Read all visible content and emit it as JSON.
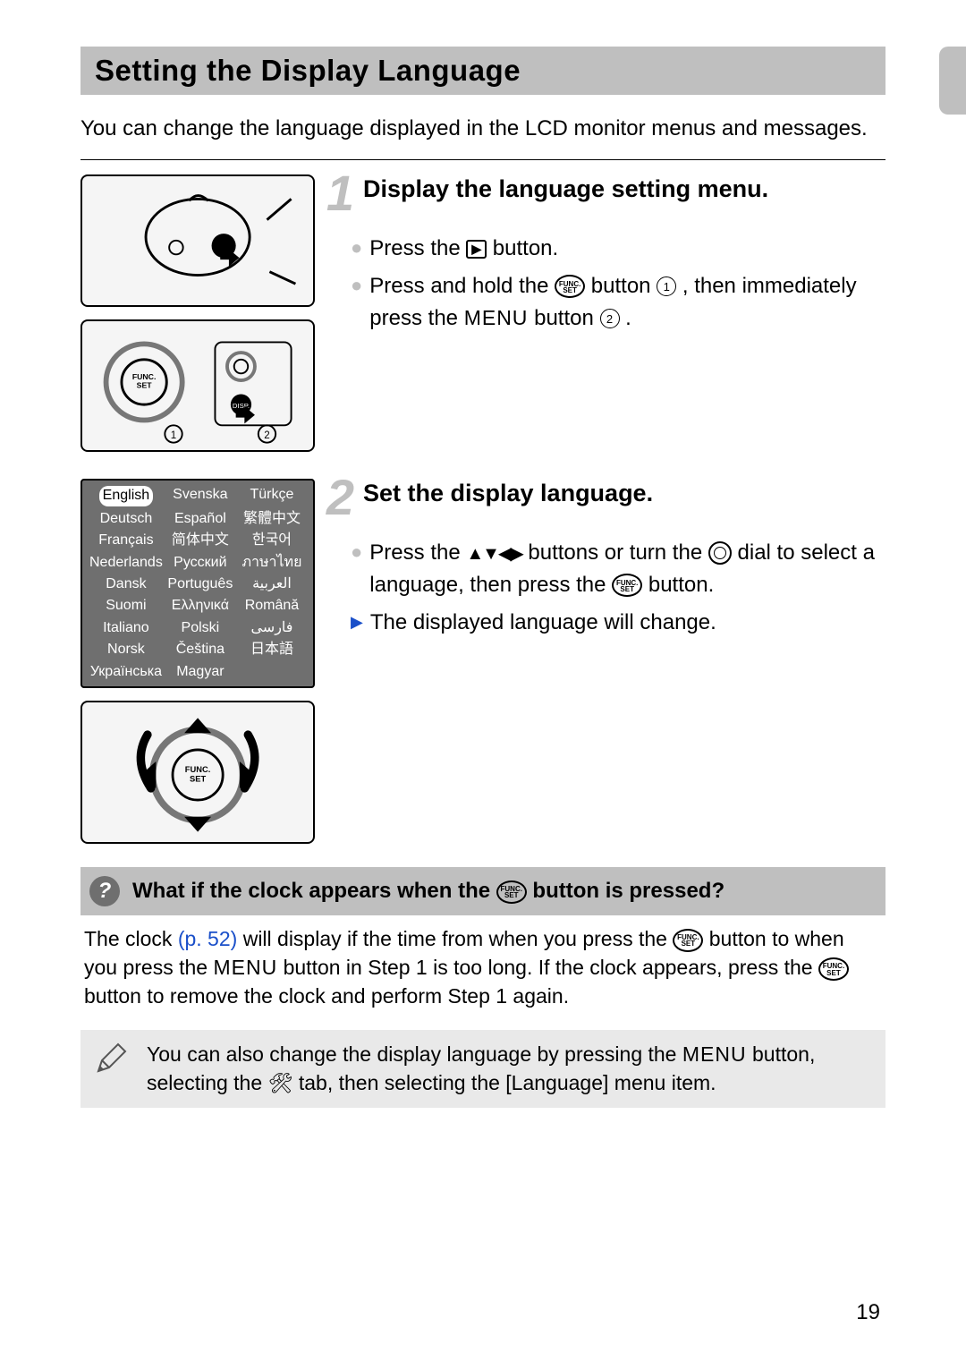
{
  "page": {
    "number": "19",
    "title": "Setting the Display Language",
    "intro": "You can change the language displayed in the LCD monitor menus and messages."
  },
  "steps": {
    "s1": {
      "num": "1",
      "title": "Display the language setting menu.",
      "b1a": "Press the ",
      "b1b": " button.",
      "b2a": "Press and hold the ",
      "b2b": " button ",
      "b2c": " , then immediately press the ",
      "b2d": " button ",
      "b2e": " ."
    },
    "s2": {
      "num": "2",
      "title": "Set the display language.",
      "b1a": "Press the ",
      "b1b": " buttons or turn the ",
      "b1c": " dial to select a language, then press the ",
      "b1d": " button.",
      "r1": "The displayed language will change."
    }
  },
  "icons": {
    "play": "▶",
    "func_top": "FUNC.",
    "func_bot": "SET",
    "circ1": "1",
    "circ2": "2",
    "menu": "MENU",
    "arrows": "▲▼◀▶"
  },
  "lang_table": {
    "cols": 3,
    "rows": [
      [
        "English",
        "Svenska",
        "Türkçe"
      ],
      [
        "Deutsch",
        "Español",
        "繁體中文"
      ],
      [
        "Français",
        "简体中文",
        "한국어"
      ],
      [
        "Nederlands",
        "Русский",
        "ภาษาไทย"
      ],
      [
        "Dansk",
        "Português",
        "العربية"
      ],
      [
        "Suomi",
        "Ελληνικά",
        "Română"
      ],
      [
        "Italiano",
        "Polski",
        "فارسی"
      ],
      [
        "Norsk",
        "Čeština",
        "日本語"
      ],
      [
        "Українська",
        "Magyar",
        ""
      ]
    ],
    "selected": "English"
  },
  "info": {
    "q_a": "What if the clock appears when the ",
    "q_b": " button is pressed?",
    "body_a": "The clock ",
    "body_link": "(p. 52)",
    "body_b": " will display if the time from when you press the ",
    "body_c": " button to when you press the ",
    "body_d": " button in Step 1 is too long. If the clock appears, press the ",
    "body_e": " button to remove the clock and perform Step 1 again."
  },
  "note": {
    "a": "You can also change the display language by pressing the ",
    "b": " button, selecting the ",
    "c": " tab, then selecting the [Language] menu item.",
    "tools_icon": "🛠"
  },
  "colors": {
    "band": "#bfbfbf",
    "step_num": "#bfbfbf",
    "link": "#1a4fc9",
    "table_bg": "#6f6f6f",
    "note_bg": "#e9e9e9"
  }
}
